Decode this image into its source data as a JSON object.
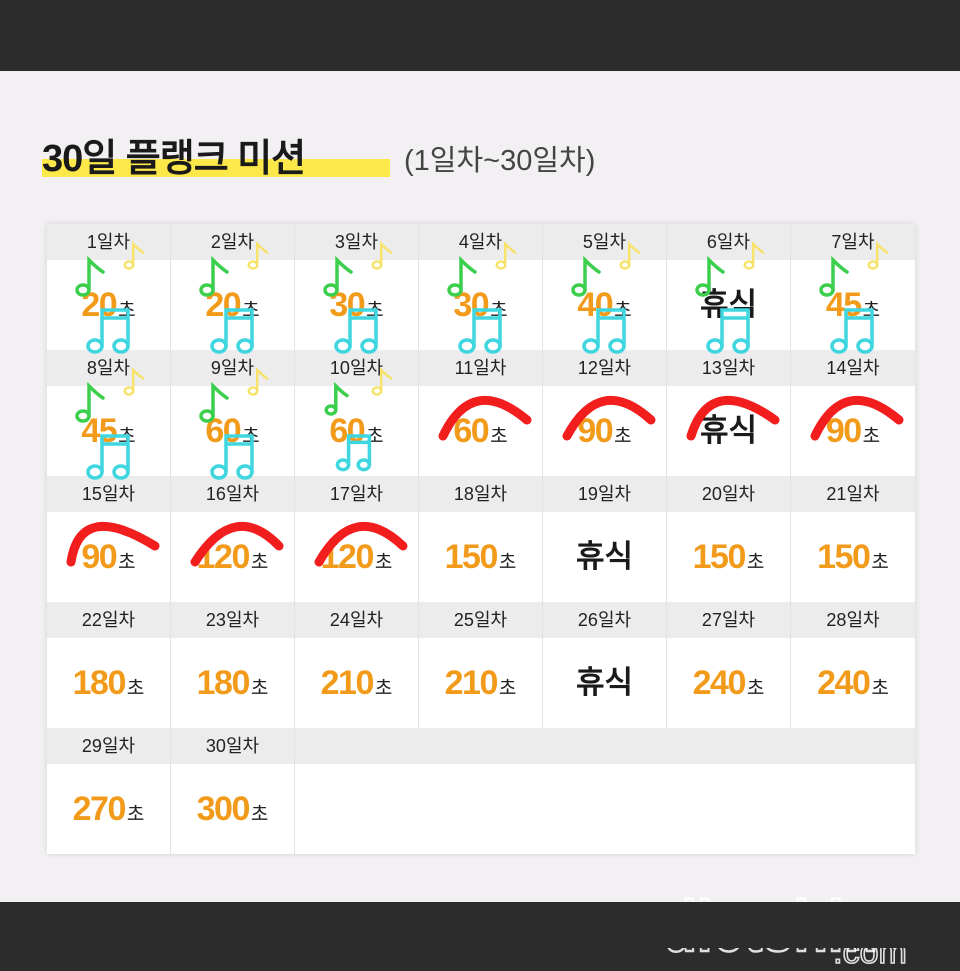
{
  "title": {
    "main": "30일 플랭크 미션",
    "sub": "(1일차~30일차)"
  },
  "unit": "초",
  "rest_label": "휴식",
  "days": [
    {
      "label": "1일차",
      "value": "20"
    },
    {
      "label": "2일차",
      "value": "20"
    },
    {
      "label": "3일차",
      "value": "30"
    },
    {
      "label": "4일차",
      "value": "30"
    },
    {
      "label": "5일차",
      "value": "40"
    },
    {
      "label": "6일차",
      "value": null
    },
    {
      "label": "7일차",
      "value": "45"
    },
    {
      "label": "8일차",
      "value": "45"
    },
    {
      "label": "9일차",
      "value": "60"
    },
    {
      "label": "10일차",
      "value": "60"
    },
    {
      "label": "11일차",
      "value": "60"
    },
    {
      "label": "12일차",
      "value": "90"
    },
    {
      "label": "13일차",
      "value": null
    },
    {
      "label": "14일차",
      "value": "90"
    },
    {
      "label": "15일차",
      "value": "90"
    },
    {
      "label": "16일차",
      "value": "120"
    },
    {
      "label": "17일차",
      "value": "120"
    },
    {
      "label": "18일차",
      "value": "150"
    },
    {
      "label": "19일차",
      "value": null
    },
    {
      "label": "20일차",
      "value": "150"
    },
    {
      "label": "21일차",
      "value": "150"
    },
    {
      "label": "22일차",
      "value": "180"
    },
    {
      "label": "23일차",
      "value": "180"
    },
    {
      "label": "24일차",
      "value": "210"
    },
    {
      "label": "25일차",
      "value": "210"
    },
    {
      "label": "26일차",
      "value": null
    },
    {
      "label": "27일차",
      "value": "240"
    },
    {
      "label": "28일차",
      "value": "240"
    },
    {
      "label": "29일차",
      "value": "270"
    },
    {
      "label": "30일차",
      "value": "300"
    }
  ],
  "watermark": "dietshin.com",
  "colors": {
    "value": "#f29b1b",
    "highlight": "#fde84a",
    "note_green": "#3ccf4e",
    "note_yellow": "#f7e26b",
    "note_blue": "#3fd6e0",
    "check_red": "#f21d1d"
  }
}
